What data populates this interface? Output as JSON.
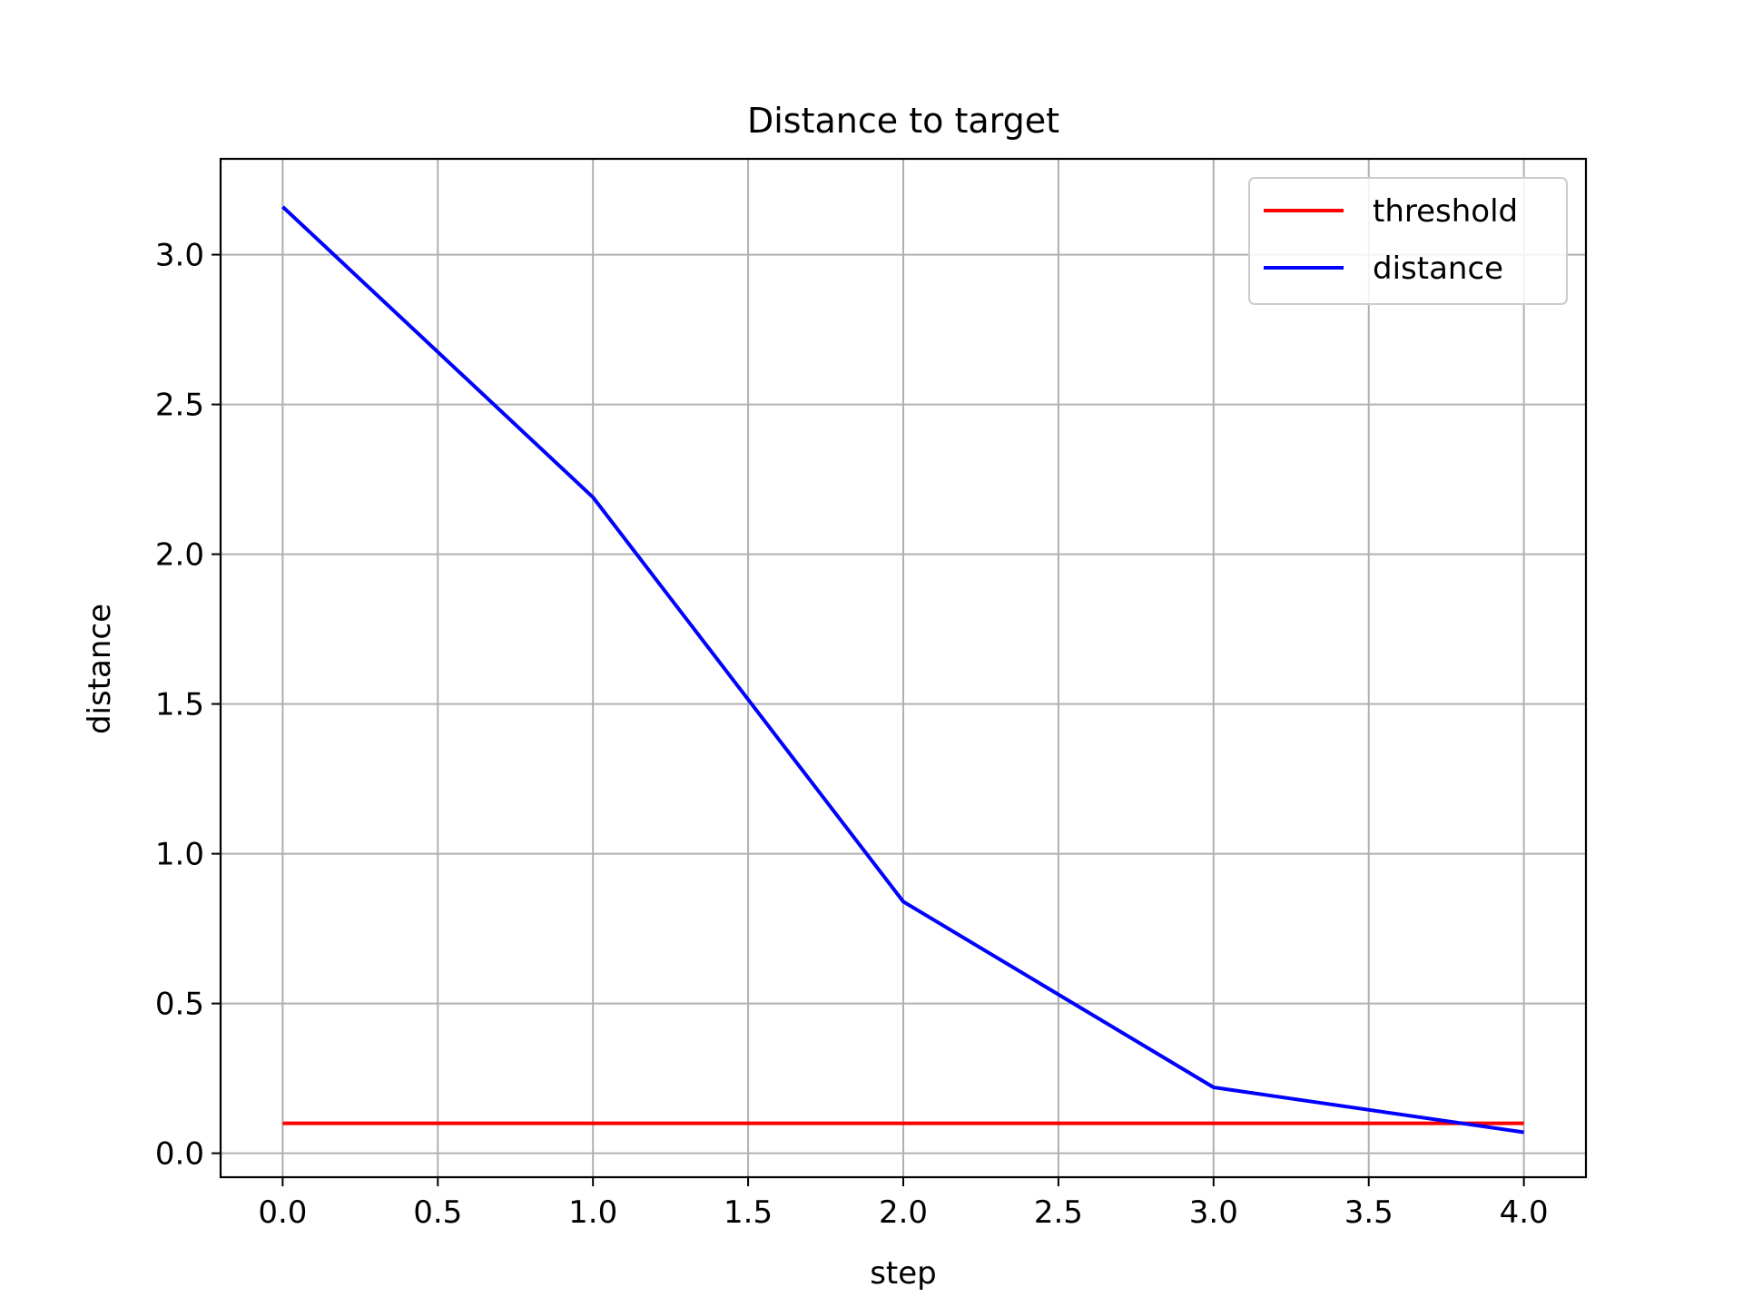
{
  "chart_data": {
    "type": "line",
    "title": "Distance to target",
    "xlabel": "step",
    "ylabel": "distance",
    "xlim": [
      -0.2,
      4.2
    ],
    "ylim": [
      -0.08,
      3.32
    ],
    "xticks": [
      0.0,
      0.5,
      1.0,
      1.5,
      2.0,
      2.5,
      3.0,
      3.5,
      4.0
    ],
    "xtick_labels": [
      "0.0",
      "0.5",
      "1.0",
      "1.5",
      "2.0",
      "2.5",
      "3.0",
      "3.5",
      "4.0"
    ],
    "yticks": [
      0.0,
      0.5,
      1.0,
      1.5,
      2.0,
      2.5,
      3.0
    ],
    "ytick_labels": [
      "0.0",
      "0.5",
      "1.0",
      "1.5",
      "2.0",
      "2.5",
      "3.0"
    ],
    "grid": true,
    "legend_position": "top-right",
    "series": [
      {
        "name": "threshold",
        "color": "#ff0000",
        "x": [
          0,
          1,
          2,
          3,
          4
        ],
        "y": [
          0.1,
          0.1,
          0.1,
          0.1,
          0.1
        ]
      },
      {
        "name": "distance",
        "color": "#0000ff",
        "x": [
          0,
          1,
          2,
          3,
          4
        ],
        "y": [
          3.16,
          2.19,
          0.84,
          0.22,
          0.07
        ]
      }
    ]
  }
}
